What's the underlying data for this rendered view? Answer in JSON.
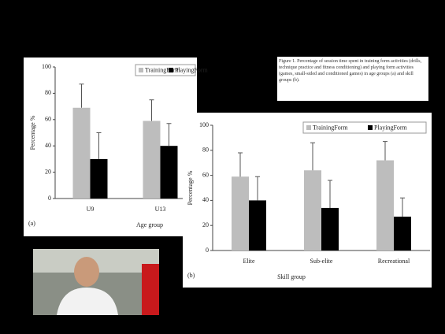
{
  "caption": "Figure 1. Percentage of session time spent in training form activities (drills, technique practice and fitness conditioning) and playing form activities (games, small-sided and conditioned games) in age groups (a) and skill groups (b).",
  "chart_data": [
    {
      "type": "bar",
      "panel_label": "(a)",
      "ylabel": "Percentage %",
      "xlabel": "Age group",
      "categories": [
        "U9",
        "U13"
      ],
      "series": [
        {
          "name": "TrainingForm",
          "color": "#bdbdbd",
          "values": [
            69,
            59
          ],
          "errors": [
            18,
            16
          ]
        },
        {
          "name": "PlayingForm",
          "color": "#000000",
          "values": [
            30,
            40
          ],
          "errors": [
            20,
            17
          ]
        }
      ],
      "ylim": [
        0,
        100
      ],
      "yticks": [
        0,
        20,
        40,
        60,
        80,
        100
      ],
      "legend": "upper right"
    },
    {
      "type": "bar",
      "panel_label": "(b)",
      "ylabel": "Percentage %",
      "xlabel": "Skill group",
      "categories": [
        "Elite",
        "Sub-elite",
        "Recreational"
      ],
      "series": [
        {
          "name": "TrainingForm",
          "color": "#bdbdbd",
          "values": [
            59,
            64,
            72
          ],
          "errors": [
            19,
            22,
            15
          ]
        },
        {
          "name": "PlayingForm",
          "color": "#000000",
          "values": [
            40,
            34,
            27
          ],
          "errors": [
            19,
            22,
            15
          ]
        }
      ],
      "ylim": [
        0,
        100
      ],
      "yticks": [
        0,
        20,
        40,
        60,
        80,
        100
      ],
      "legend": "upper right"
    }
  ]
}
